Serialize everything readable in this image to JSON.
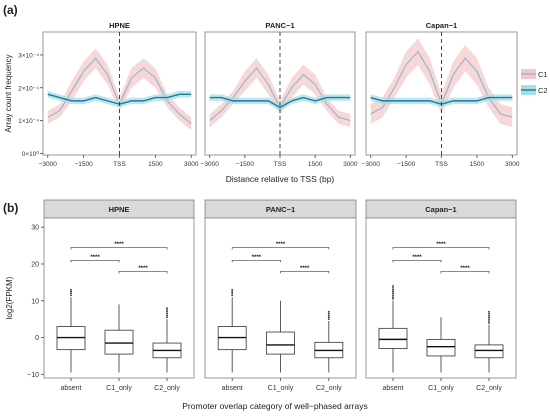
{
  "panel_labels": {
    "a": "(a)",
    "b": "(b)"
  },
  "colors": {
    "c1_line": "#8fb6cc",
    "c1_band": "#f6c9c9",
    "c2_line": "#1f7a99",
    "c2_band": "#a8dde8",
    "strip_fill": "#d9d9d9",
    "panel_border": "#7f7f7f"
  },
  "chart_data": [
    {
      "type": "line",
      "panel": "a",
      "facets": [
        "HPNE",
        "PANC−1",
        "Capan−1"
      ],
      "xlabel": "Distance relative to TSS (bp)",
      "ylabel": "Array count frequency",
      "x_ticks": [
        "−3000",
        "−1500",
        "TSS",
        "1500",
        "3000"
      ],
      "x_tick_values": [
        -3000,
        -1500,
        0,
        1500,
        3000
      ],
      "y_ticks": [
        "0×10⁰",
        "1×10⁻⁴",
        "2×10⁻⁴",
        "3×10⁻⁴"
      ],
      "y_tick_values": [
        0,
        0.0001,
        0.0002,
        0.0003
      ],
      "xlim": [
        -3200,
        3200
      ],
      "ylim": [
        -5e-06,
        0.00037
      ],
      "legend": {
        "position": "right",
        "entries": [
          "C1",
          "C2"
        ]
      },
      "vline": {
        "x": 0,
        "style": "dashed"
      },
      "x": [
        -3000,
        -2500,
        -2000,
        -1500,
        -1000,
        -500,
        0,
        500,
        1000,
        1500,
        2000,
        2500,
        3000
      ],
      "series": [
        {
          "name": "C1",
          "facet": "HPNE",
          "values": [
            0.00011,
            0.00013,
            0.00019,
            0.00025,
            0.00029,
            0.00024,
            0.00015,
            0.00023,
            0.00026,
            0.00023,
            0.00016,
            0.00012,
            9e-05
          ],
          "band": [
            2e-05,
            2e-05,
            3e-05,
            3e-05,
            3e-05,
            3e-05,
            2e-05,
            3e-05,
            3e-05,
            3e-05,
            2e-05,
            2e-05,
            2e-05
          ]
        },
        {
          "name": "C2",
          "facet": "HPNE",
          "values": [
            0.00018,
            0.00017,
            0.00016,
            0.00016,
            0.00017,
            0.00016,
            0.00015,
            0.00016,
            0.00016,
            0.00017,
            0.00017,
            0.00018,
            0.00018
          ],
          "band": [
            1e-05,
            1e-05,
            1e-05,
            1e-05,
            1e-05,
            1e-05,
            1e-05,
            1e-05,
            1e-05,
            1e-05,
            1e-05,
            1e-05,
            1e-05
          ]
        },
        {
          "name": "C1",
          "facet": "PANC−1",
          "values": [
            0.0001,
            0.00013,
            0.00017,
            0.00022,
            0.00026,
            0.00021,
            0.00014,
            0.0002,
            0.00024,
            0.00021,
            0.00015,
            0.00011,
            0.0001
          ],
          "band": [
            2e-05,
            2e-05,
            2e-05,
            3e-05,
            3e-05,
            3e-05,
            2e-05,
            3e-05,
            3e-05,
            3e-05,
            2e-05,
            2e-05,
            2e-05
          ]
        },
        {
          "name": "C2",
          "facet": "PANC−1",
          "values": [
            0.00017,
            0.00017,
            0.00016,
            0.00016,
            0.00016,
            0.00016,
            0.00014,
            0.00016,
            0.00017,
            0.00016,
            0.00017,
            0.00017,
            0.00017
          ],
          "band": [
            1e-05,
            1e-05,
            1e-05,
            1e-05,
            1e-05,
            1e-05,
            1e-05,
            1e-05,
            1e-05,
            1e-05,
            1e-05,
            1e-05,
            1e-05
          ]
        },
        {
          "name": "C1",
          "facet": "Capan−1",
          "values": [
            0.00012,
            0.00014,
            0.0002,
            0.00027,
            0.00031,
            0.00025,
            0.00015,
            0.00024,
            0.00029,
            0.00025,
            0.00017,
            0.00012,
            0.00011
          ],
          "band": [
            3e-05,
            3e-05,
            3e-05,
            4e-05,
            4e-05,
            4e-05,
            3e-05,
            4e-05,
            4e-05,
            4e-05,
            3e-05,
            3e-05,
            3e-05
          ]
        },
        {
          "name": "C2",
          "facet": "Capan−1",
          "values": [
            0.00017,
            0.00016,
            0.00016,
            0.00016,
            0.00016,
            0.00016,
            0.00015,
            0.00016,
            0.00016,
            0.00016,
            0.00017,
            0.00017,
            0.00017
          ],
          "band": [
            1e-05,
            1e-05,
            1e-05,
            1e-05,
            1e-05,
            1e-05,
            1e-05,
            1e-05,
            1e-05,
            1e-05,
            1e-05,
            1e-05,
            1e-05
          ]
        }
      ]
    },
    {
      "type": "box",
      "panel": "b",
      "facets": [
        "HPNE",
        "PANC−1",
        "Capan−1"
      ],
      "categories": [
        "absent",
        "C1_only",
        "C2_only"
      ],
      "xlabel": "Promoter overlap category of well−phased arrays",
      "ylabel": "log2(FPKM)",
      "y_ticks": [
        "−10",
        "0",
        "10",
        "20",
        "30"
      ],
      "y_tick_values": [
        -10,
        0,
        10,
        20,
        30
      ],
      "ylim": [
        -11,
        32.5
      ],
      "significance_label": "****",
      "boxes": [
        {
          "facet": "HPNE",
          "category": "absent",
          "min": -9.5,
          "q1": -3.3,
          "median": 0,
          "q3": 3,
          "max": 11,
          "outliers_max": 13
        },
        {
          "facet": "HPNE",
          "category": "C1_only",
          "min": -9.5,
          "q1": -4.5,
          "median": -1.5,
          "q3": 2,
          "max": 9,
          "outliers_max": 9
        },
        {
          "facet": "HPNE",
          "category": "C2_only",
          "min": -9.5,
          "q1": -5.5,
          "median": -3.5,
          "q3": -1.5,
          "max": 5,
          "outliers_max": 8
        },
        {
          "facet": "PANC−1",
          "category": "absent",
          "min": -9.5,
          "q1": -3.3,
          "median": 0,
          "q3": 3,
          "max": 11,
          "outliers_max": 13
        },
        {
          "facet": "PANC−1",
          "category": "C1_only",
          "min": -9.5,
          "q1": -4.5,
          "median": -2,
          "q3": 1.5,
          "max": 10,
          "outliers_max": 10
        },
        {
          "facet": "PANC−1",
          "category": "C2_only",
          "min": -9.5,
          "q1": -5.5,
          "median": -3.5,
          "q3": -1.3,
          "max": 4.5,
          "outliers_max": 7
        },
        {
          "facet": "Capan−1",
          "category": "absent",
          "min": -9.5,
          "q1": -3,
          "median": -0.5,
          "q3": 2.5,
          "max": 10,
          "outliers_max": 14
        },
        {
          "facet": "Capan−1",
          "category": "C1_only",
          "min": -9.5,
          "q1": -5,
          "median": -2.5,
          "q3": -0.5,
          "max": 5.5,
          "outliers_max": 5.5
        },
        {
          "facet": "Capan−1",
          "category": "C2_only",
          "min": -9.5,
          "q1": -5.5,
          "median": -3.5,
          "q3": -2,
          "max": 3.5,
          "outliers_max": 7
        }
      ],
      "brackets": [
        {
          "from": "absent",
          "to": "C2_only",
          "y": 24.5,
          "label": "****"
        },
        {
          "from": "absent",
          "to": "C1_only",
          "y": 21,
          "label": "****"
        },
        {
          "from": "C1_only",
          "to": "C2_only",
          "y": 18,
          "label": "****"
        }
      ]
    }
  ]
}
